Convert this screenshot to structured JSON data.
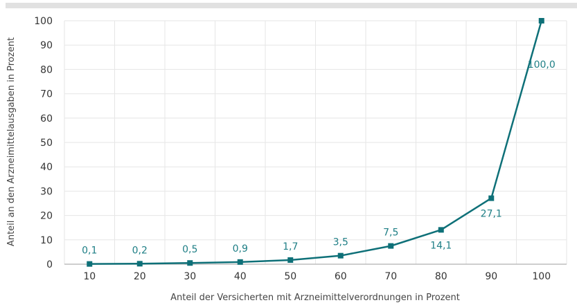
{
  "chart_data": {
    "type": "line",
    "title": "",
    "xlabel": "Anteil der Versicherten mit Arzneimittelverordnungen in Prozent",
    "ylabel": "Anteil an den Arzneimittelausgaben in Prozent",
    "x": [
      10,
      20,
      30,
      40,
      50,
      60,
      70,
      80,
      90,
      100
    ],
    "x_tick_labels": [
      "10",
      "20",
      "30",
      "40",
      "50",
      "60",
      "70",
      "80",
      "90",
      "100"
    ],
    "y_tick_labels": [
      "0",
      "10",
      "20",
      "30",
      "40",
      "50",
      "60",
      "70",
      "80",
      "90",
      "100"
    ],
    "series": [
      {
        "values": [
          0.1,
          0.2,
          0.5,
          0.9,
          1.7,
          3.5,
          7.5,
          14.1,
          27.1,
          100.0
        ],
        "labels": [
          "0,1",
          "0,2",
          "0,5",
          "0,9",
          "1,7",
          "3,5",
          "7,5",
          "14,1",
          "27,1",
          "100,0"
        ]
      }
    ],
    "xlim": [
      5,
      105
    ],
    "ylim": [
      0,
      100
    ],
    "y_ticks": [
      0,
      10,
      20,
      30,
      40,
      50,
      60,
      70,
      80,
      90,
      100
    ],
    "grid": true,
    "legend": "none",
    "colors": {
      "series": "#0e7078",
      "grid": "#e6e6e6",
      "axis": "#bdbdbd",
      "label": "#1f7f86"
    }
  }
}
